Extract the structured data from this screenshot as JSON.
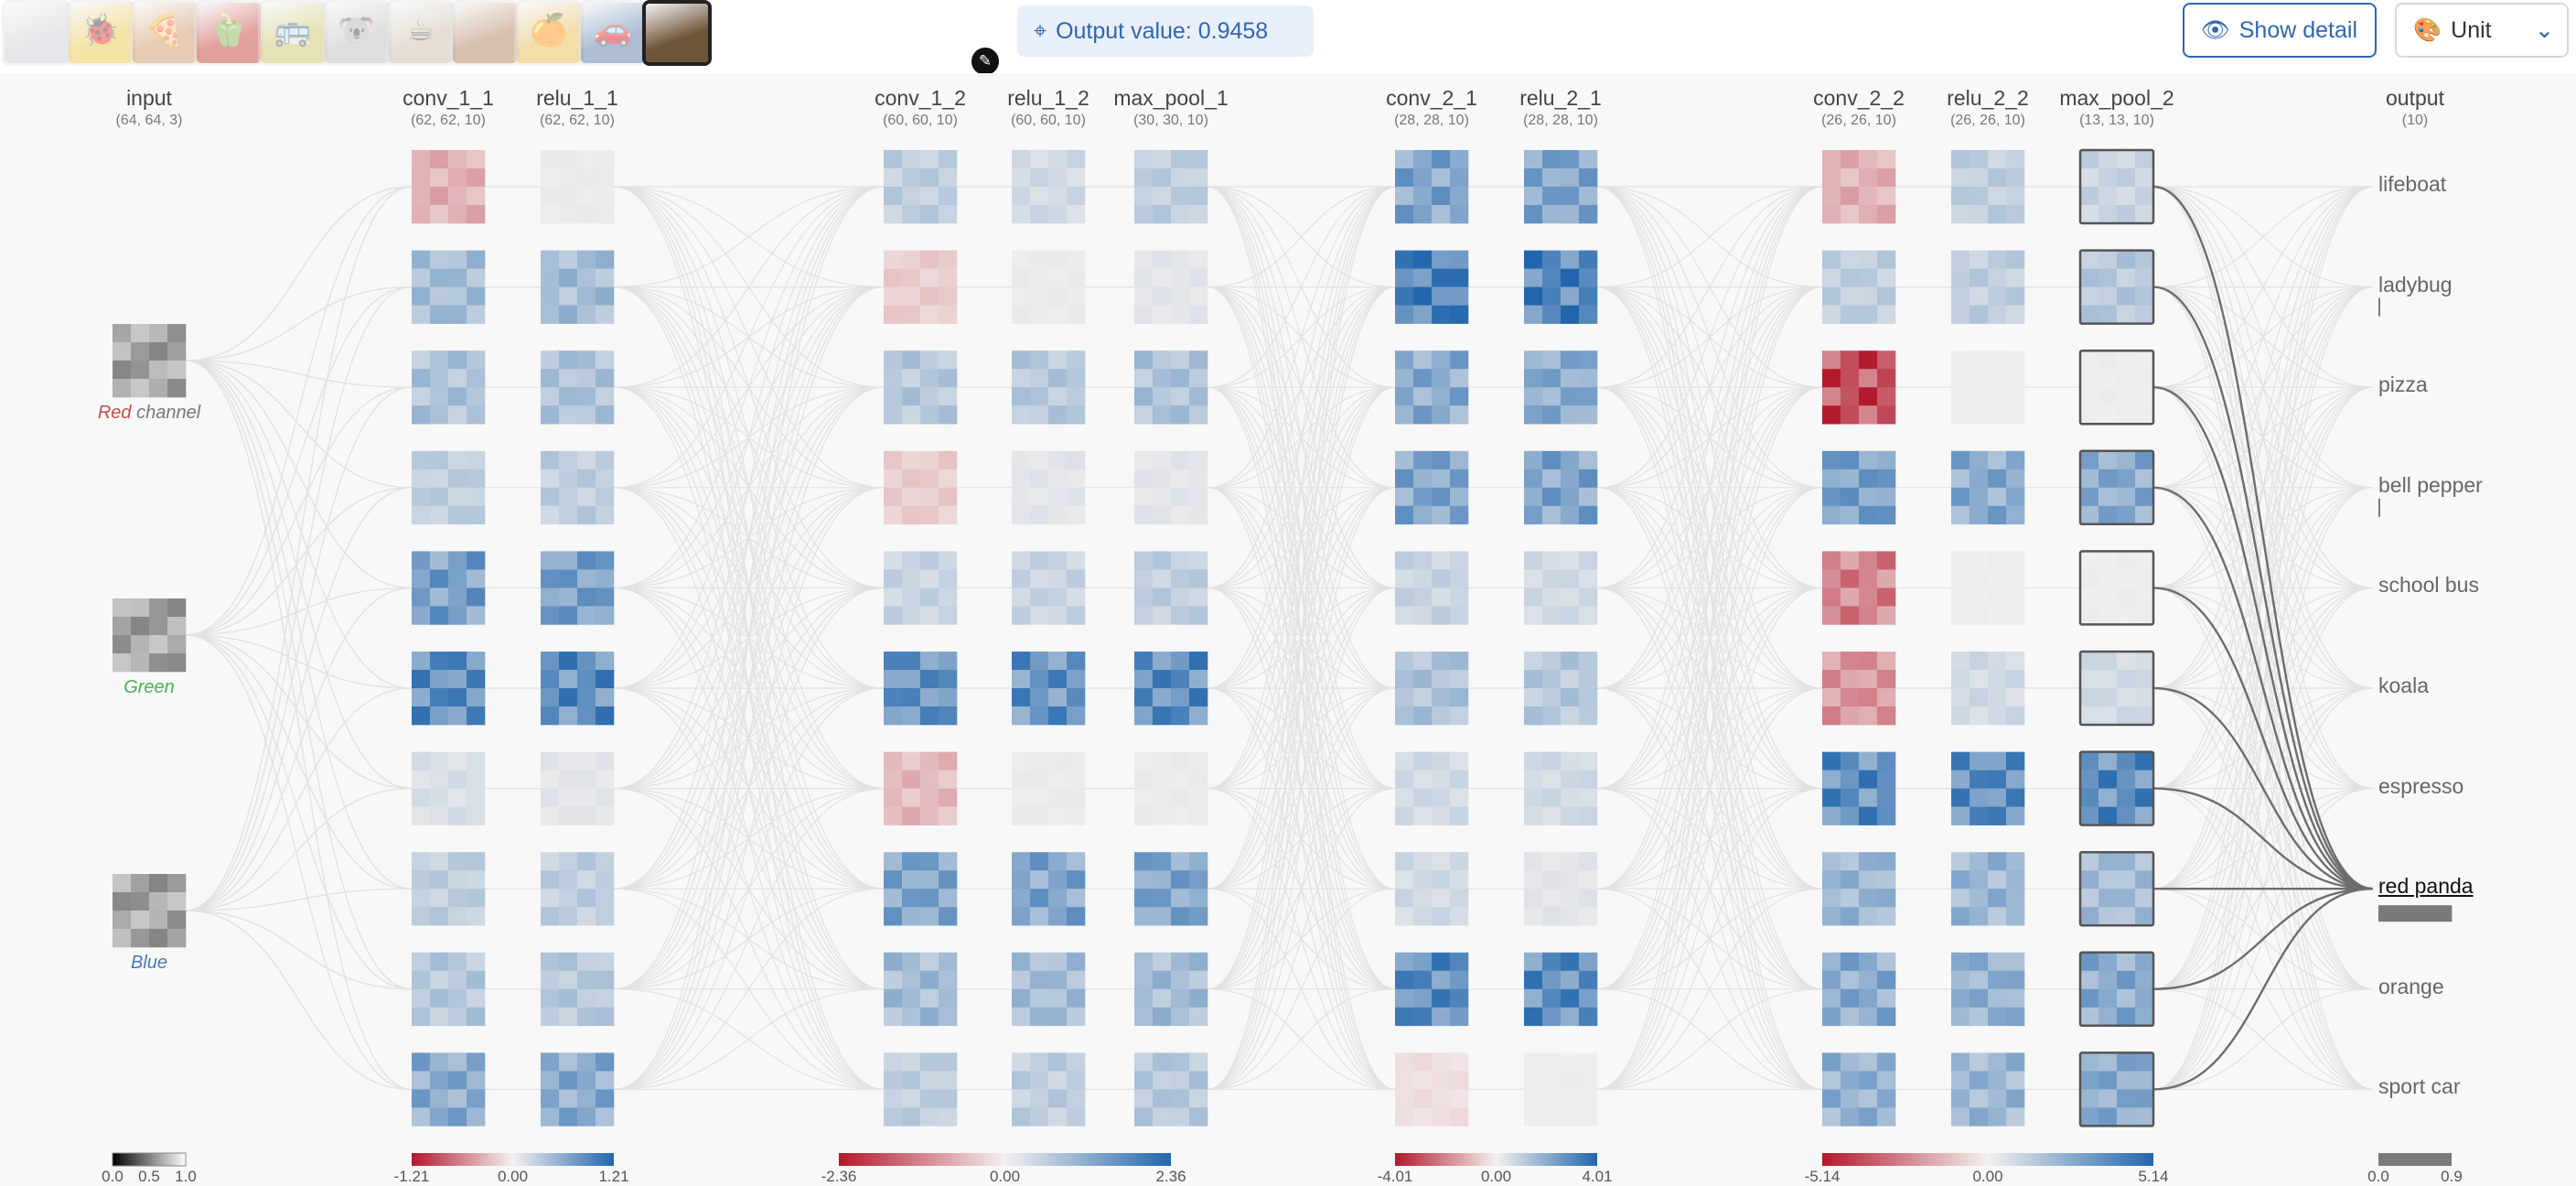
{
  "gallery": [
    {
      "name": "thumb-1",
      "color": "#c9ccd1",
      "emblem": ""
    },
    {
      "name": "thumb-2",
      "color": "#e8c23c",
      "emblem": "🐞"
    },
    {
      "name": "thumb-3",
      "color": "#c98b55",
      "emblem": "🍕"
    },
    {
      "name": "thumb-4",
      "color": "#c2302a",
      "emblem": "🫑"
    },
    {
      "name": "thumb-5",
      "color": "#c7bf5a",
      "emblem": "🚌"
    },
    {
      "name": "thumb-6",
      "color": "#b9b9b9",
      "emblem": "🐨"
    },
    {
      "name": "thumb-7",
      "color": "#c7b7a3",
      "emblem": "☕"
    },
    {
      "name": "thumb-8",
      "color": "#a8754f",
      "emblem": ""
    },
    {
      "name": "thumb-9",
      "color": "#e6b443",
      "emblem": "🍊"
    },
    {
      "name": "thumb-10",
      "color": "#4b6fa0",
      "emblem": "🚗"
    },
    {
      "name": "thumb-11",
      "color": "#6e5438",
      "emblem": ""
    }
  ],
  "toolbar": {
    "output_value": "Output value: 0.9458",
    "show_detail": "Show detail",
    "unit_select": "Unit",
    "icons": {
      "target": "crosshair-icon",
      "eye": "eye-icon",
      "palette": "palette-icon",
      "chevron": "chevron-down-icon",
      "edit": "pencil-icon"
    }
  },
  "input_layer": {
    "name": "input",
    "dims": "(64, 64, 3)",
    "channels": [
      {
        "word": "Red",
        "suffix": " channel",
        "color": "#c0504d"
      },
      {
        "word": "Green",
        "suffix": "",
        "color": "#4caf50"
      },
      {
        "word": "Blue",
        "suffix": "",
        "color": "#4a78b8"
      }
    ]
  },
  "layers": [
    {
      "name": "conv_1_1",
      "dims": "(62, 62, 10)",
      "group": 1,
      "strong": [
        0.35,
        0.45,
        0.4,
        0.3,
        0.7,
        0.85,
        0.15,
        0.3,
        0.35,
        0.6
      ],
      "signs": [
        -1,
        1,
        1,
        1,
        1,
        1,
        1,
        1,
        1,
        1
      ]
    },
    {
      "name": "relu_1_1",
      "dims": "(62, 62, 10)",
      "group": 1,
      "strong": [
        0.05,
        0.45,
        0.4,
        0.3,
        0.7,
        0.85,
        0.1,
        0.3,
        0.35,
        0.6
      ],
      "signs": [
        1,
        1,
        1,
        1,
        1,
        1,
        1,
        1,
        1,
        1
      ]
    },
    {
      "name": "conv_1_2",
      "dims": "(60, 60, 10)",
      "group": 2,
      "strong": [
        0.3,
        0.2,
        0.35,
        0.2,
        0.25,
        0.8,
        0.3,
        0.65,
        0.45,
        0.3
      ],
      "signs": [
        1,
        -1,
        1,
        -1,
        1,
        1,
        -1,
        1,
        1,
        1
      ]
    },
    {
      "name": "relu_1_2",
      "dims": "(60, 60, 10)",
      "group": 2,
      "strong": [
        0.2,
        0.05,
        0.35,
        0.1,
        0.25,
        0.8,
        0.05,
        0.65,
        0.45,
        0.3
      ],
      "signs": [
        1,
        1,
        1,
        1,
        1,
        1,
        1,
        1,
        1,
        1
      ]
    },
    {
      "name": "max_pool_1",
      "dims": "(30, 30, 10)",
      "group": 2,
      "strong": [
        0.3,
        0.1,
        0.4,
        0.1,
        0.3,
        0.85,
        0.05,
        0.65,
        0.45,
        0.35
      ],
      "signs": [
        1,
        1,
        1,
        1,
        1,
        1,
        1,
        1,
        1,
        1
      ]
    },
    {
      "name": "conv_2_1",
      "dims": "(28, 28, 10)",
      "group": 3,
      "strong": [
        0.65,
        0.95,
        0.6,
        0.65,
        0.25,
        0.4,
        0.2,
        0.2,
        0.85,
        0.1
      ],
      "signs": [
        1,
        1,
        1,
        1,
        1,
        1,
        1,
        1,
        1,
        -1
      ]
    },
    {
      "name": "relu_2_1",
      "dims": "(28, 28, 10)",
      "group": 3,
      "strong": [
        0.65,
        0.95,
        0.6,
        0.65,
        0.2,
        0.35,
        0.2,
        0.1,
        0.85,
        0.03
      ],
      "signs": [
        1,
        1,
        1,
        1,
        1,
        1,
        1,
        1,
        1,
        1
      ]
    },
    {
      "name": "conv_2_2",
      "dims": "(26, 26, 10)",
      "group": 4,
      "strong": [
        0.35,
        0.3,
        0.9,
        0.7,
        0.6,
        0.5,
        0.85,
        0.5,
        0.6,
        0.55
      ],
      "signs": [
        -1,
        1,
        -1,
        1,
        -1,
        -1,
        1,
        1,
        1,
        1
      ]
    },
    {
      "name": "relu_2_2",
      "dims": "(26, 26, 10)",
      "group": 4,
      "strong": [
        0.3,
        0.3,
        0.03,
        0.6,
        0.03,
        0.2,
        0.85,
        0.5,
        0.55,
        0.5
      ],
      "signs": [
        1,
        1,
        1,
        1,
        1,
        1,
        1,
        1,
        1,
        1
      ]
    },
    {
      "name": "max_pool_2",
      "dims": "(13, 13, 10)",
      "group": 4,
      "strong": [
        0.25,
        0.35,
        0.03,
        0.6,
        0.03,
        0.2,
        0.85,
        0.45,
        0.6,
        0.6
      ],
      "signs": [
        1,
        1,
        1,
        1,
        1,
        1,
        1,
        1,
        1,
        1
      ],
      "outlined": true
    }
  ],
  "output_layer": {
    "name": "output",
    "dims": "(10)",
    "classes": [
      "lifeboat",
      "ladybug",
      "pizza",
      "bell pepper",
      "school bus",
      "koala",
      "espresso",
      "red panda",
      "orange",
      "sport car"
    ],
    "probabilities": [
      0.0,
      0.01,
      0.0,
      0.01,
      0.0,
      0.0,
      0.0,
      0.9458,
      0.0,
      0.0
    ],
    "selected": "red panda"
  },
  "color_scales": [
    {
      "name": "scale-input",
      "group": 0,
      "ticks": [
        "0.0",
        "0.5",
        "1.0"
      ],
      "diverging": false
    },
    {
      "name": "scale-group-1",
      "group": 1,
      "ticks": [
        "-1.21",
        "0.00",
        "1.21"
      ],
      "diverging": true
    },
    {
      "name": "scale-group-2",
      "group": 2,
      "ticks": [
        "-2.36",
        "0.00",
        "2.36"
      ],
      "diverging": true
    },
    {
      "name": "scale-group-3",
      "group": 3,
      "ticks": [
        "-4.01",
        "0.00",
        "4.01"
      ],
      "diverging": true
    },
    {
      "name": "scale-group-4",
      "group": 4,
      "ticks": [
        "-5.14",
        "0.00",
        "5.14"
      ],
      "diverging": true
    },
    {
      "name": "scale-output",
      "group": 5,
      "ticks": [
        "0.0",
        "0.9"
      ],
      "diverging": false
    }
  ],
  "colors": {
    "accent": "#2f66b2",
    "negative": "#b2182b",
    "positive": "#2166ac",
    "neutral": "#f4f1ef",
    "edge": "#e2e2e2",
    "output_bar": "#7a7a7a"
  }
}
